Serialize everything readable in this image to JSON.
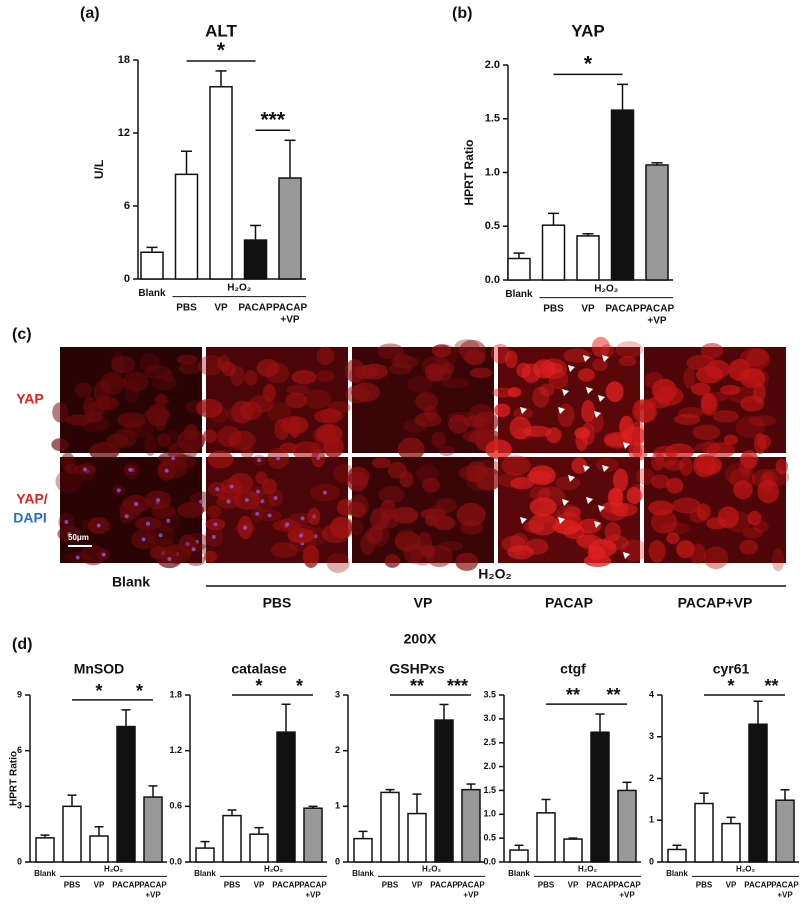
{
  "panel_labels": [
    "(a)",
    "(b)",
    "(c)",
    "(d)"
  ],
  "micrograph": {
    "row_labels": {
      "yap": "YAP",
      "merge_yap": "YAP/",
      "merge_dapi": "DAPI"
    },
    "scale_bar": "50μm",
    "columns": [
      "Blank",
      "PBS",
      "VP",
      "PACAP",
      "PACAP+VP"
    ],
    "group_label": "H₂O₂",
    "magnification": "200X"
  },
  "chart_data": [
    {
      "type": "bar",
      "title": "ALT",
      "ylabel": "U/L",
      "categories": [
        "Blank",
        "PBS",
        "VP",
        "PACAP",
        "PACAP\n+VP"
      ],
      "group_label": "H₂O₂",
      "values": [
        2.2,
        8.6,
        15.8,
        3.2,
        8.3
      ],
      "errors": [
        0.4,
        1.9,
        1.3,
        1.2,
        3.1
      ],
      "colors": [
        "#ffffff",
        "#ffffff",
        "#ffffff",
        "#111111",
        "#999999"
      ],
      "ylim": [
        0,
        18
      ],
      "yticks": [
        0,
        6,
        12,
        18
      ],
      "significance": [
        {
          "label": "*",
          "span": [
            1,
            3
          ]
        },
        {
          "label": "***",
          "span": [
            3,
            4
          ]
        }
      ]
    },
    {
      "type": "bar",
      "title": "YAP",
      "ylabel": "HPRT Ratio",
      "categories": [
        "Blank",
        "PBS",
        "VP",
        "PACAP",
        "PACAP\n+VP"
      ],
      "group_label": "H₂O₂",
      "values": [
        0.2,
        0.51,
        0.41,
        1.58,
        1.07
      ],
      "errors": [
        0.05,
        0.11,
        0.02,
        0.24,
        0.02
      ],
      "colors": [
        "#ffffff",
        "#ffffff",
        "#ffffff",
        "#111111",
        "#999999"
      ],
      "ylim": [
        0,
        2
      ],
      "yticks": [
        {
          "value": 0,
          "label": "0.0"
        },
        0.5,
        {
          "value": 1,
          "label": "1.0"
        },
        1.5,
        {
          "value": 2,
          "label": "2.0"
        }
      ],
      "significance": [
        {
          "label": "*",
          "span": [
            1,
            3
          ]
        }
      ]
    },
    {
      "type": "bar",
      "title": "MnSOD",
      "ylabel": "HPRT Ratio",
      "categories": [
        "Blank",
        "PBS",
        "VP",
        "PACAP",
        "PACAP\n+VP"
      ],
      "group_label": "H₂O₂",
      "values": [
        1.3,
        3.0,
        1.4,
        7.3,
        3.5
      ],
      "errors": [
        0.15,
        0.6,
        0.5,
        0.9,
        0.6
      ],
      "colors": [
        "#ffffff",
        "#ffffff",
        "#ffffff",
        "#111111",
        "#999999"
      ],
      "ylim": [
        0,
        9
      ],
      "yticks": [
        0,
        3,
        6,
        9
      ],
      "significance": [
        {
          "label": "*",
          "span": [
            1,
            3
          ]
        },
        {
          "label": "*",
          "span": [
            3,
            4
          ]
        }
      ]
    },
    {
      "type": "bar",
      "title": "catalase",
      "categories": [
        "Blank",
        "PBS",
        "VP",
        "PACAP",
        "PACAP\n+VP"
      ],
      "group_label": "H₂O₂",
      "values": [
        0.15,
        0.5,
        0.3,
        1.4,
        0.58
      ],
      "errors": [
        0.07,
        0.06,
        0.07,
        0.3,
        0.02
      ],
      "colors": [
        "#ffffff",
        "#ffffff",
        "#ffffff",
        "#111111",
        "#999999"
      ],
      "ylim": [
        0,
        1.8
      ],
      "yticks": [
        {
          "value": 0,
          "label": "0.0"
        },
        0.6,
        1.2,
        1.8
      ],
      "significance": [
        {
          "label": "*",
          "span": [
            1,
            3
          ]
        },
        {
          "label": "*",
          "span": [
            3,
            4
          ]
        }
      ]
    },
    {
      "type": "bar",
      "title": "GSHPxs",
      "categories": [
        "Blank",
        "PBS",
        "VP",
        "PACAP",
        "PACAP\n+VP"
      ],
      "group_label": "H₂O₂",
      "values": [
        0.42,
        1.25,
        0.87,
        2.55,
        1.3
      ],
      "errors": [
        0.13,
        0.05,
        0.35,
        0.28,
        0.1
      ],
      "colors": [
        "#ffffff",
        "#ffffff",
        "#ffffff",
        "#111111",
        "#999999"
      ],
      "ylim": [
        0,
        3
      ],
      "yticks": [
        0,
        1,
        2,
        3
      ],
      "significance": [
        {
          "label": "**",
          "span": [
            1,
            3
          ]
        },
        {
          "label": "***",
          "span": [
            3,
            4
          ]
        }
      ]
    },
    {
      "type": "bar",
      "title": "ctgf",
      "categories": [
        "Blank",
        "PBS",
        "VP",
        "PACAP",
        "PACAP\n+VP"
      ],
      "group_label": "H₂O₂",
      "values": [
        0.25,
        1.03,
        0.48,
        2.72,
        1.5
      ],
      "errors": [
        0.1,
        0.28,
        0.02,
        0.38,
        0.17
      ],
      "colors": [
        "#ffffff",
        "#ffffff",
        "#ffffff",
        "#111111",
        "#999999"
      ],
      "ylim": [
        0,
        3.5
      ],
      "yticks": [
        {
          "value": 0,
          "label": "0.0"
        },
        0.5,
        {
          "value": 1,
          "label": "1.0"
        },
        1.5,
        {
          "value": 2,
          "label": "2.0"
        },
        2.5,
        {
          "value": 3,
          "label": "3.0"
        },
        3.5
      ],
      "significance": [
        {
          "label": "**",
          "span": [
            1,
            3
          ]
        },
        {
          "label": "**",
          "span": [
            3,
            4
          ]
        }
      ]
    },
    {
      "type": "bar",
      "title": "cyr61",
      "categories": [
        "Blank",
        "PBS",
        "VP",
        "PACAP",
        "PACAP\n+VP"
      ],
      "group_label": "H₂O₂",
      "values": [
        0.3,
        1.4,
        0.92,
        3.3,
        1.48
      ],
      "errors": [
        0.1,
        0.25,
        0.15,
        0.55,
        0.25
      ],
      "colors": [
        "#ffffff",
        "#ffffff",
        "#ffffff",
        "#111111",
        "#999999"
      ],
      "ylim": [
        0,
        4
      ],
      "yticks": [
        0,
        1,
        2,
        3,
        4
      ],
      "significance": [
        {
          "label": "*",
          "span": [
            1,
            3
          ]
        },
        {
          "label": "**",
          "span": [
            3,
            4
          ]
        }
      ]
    }
  ]
}
